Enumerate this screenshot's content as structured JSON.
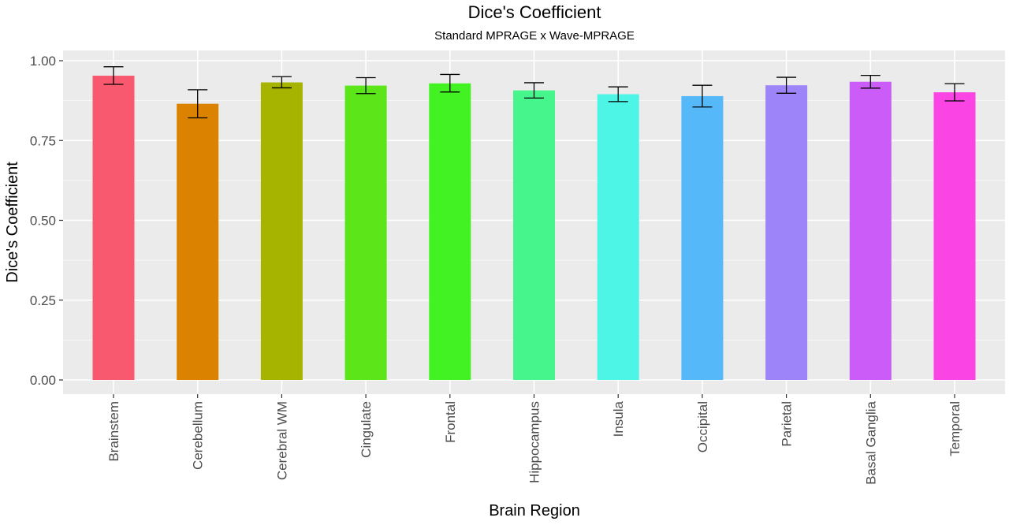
{
  "chart_data": {
    "type": "bar",
    "title": "Dice's Coefficient",
    "subtitle": "Standard MPRAGE x Wave-MPRAGE",
    "xlabel": "Brain Region",
    "ylabel": "Dice's Coefficient",
    "ylim": [
      0,
      1.0
    ],
    "yticks": [
      "0.00",
      "0.25",
      "0.50",
      "0.75",
      "1.00"
    ],
    "ytick_values": [
      0,
      0.25,
      0.5,
      0.75,
      1.0
    ],
    "grid": true,
    "categories": [
      "Brainstem",
      "Cerebellum",
      "Cerebral WM",
      "Cingulate",
      "Frontal",
      "Hippocampus",
      "Insula",
      "Occipital",
      "Parietal",
      "Basal Ganglia",
      "Temporal"
    ],
    "values": [
      0.953,
      0.865,
      0.932,
      0.922,
      0.929,
      0.907,
      0.895,
      0.889,
      0.923,
      0.934,
      0.901
    ],
    "error_low": [
      0.926,
      0.821,
      0.915,
      0.897,
      0.902,
      0.883,
      0.872,
      0.855,
      0.898,
      0.914,
      0.874
    ],
    "error_high": [
      0.981,
      0.909,
      0.95,
      0.947,
      0.957,
      0.931,
      0.918,
      0.923,
      0.948,
      0.954,
      0.928
    ],
    "colors": [
      "#F8596F",
      "#DB8200",
      "#A6B400",
      "#5CE619",
      "#43F222",
      "#46F58B",
      "#4CF5E6",
      "#55B8F8",
      "#9E84F9",
      "#CB5CF8",
      "#FA45E4"
    ]
  }
}
